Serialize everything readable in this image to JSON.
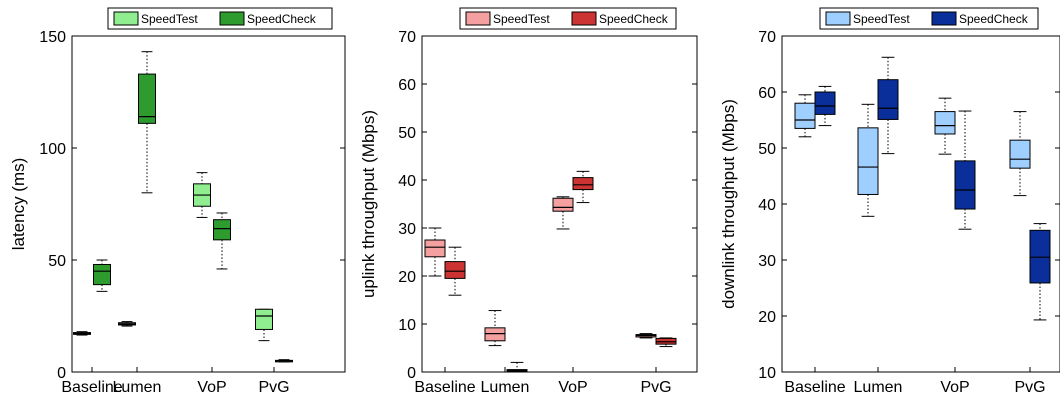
{
  "chart_data": [
    {
      "type": "box",
      "ylabel": "latency (ms)",
      "ylim": [
        0,
        150
      ],
      "yticks": [
        0,
        50,
        100,
        150
      ],
      "categories": [
        "Baseline",
        "Lumen",
        "VoP",
        "PvG"
      ],
      "legend_position": "top",
      "series": [
        {
          "name": "SpeedTest",
          "fill": "#90ee90",
          "boxes": [
            {
              "whisker_low": 16.5,
              "q1": 16.8,
              "median": 17.2,
              "q3": 17.6,
              "whisker_high": 18.0
            },
            {
              "whisker_low": 20.5,
              "q1": 21.0,
              "median": 21.5,
              "q3": 22.0,
              "whisker_high": 22.5
            },
            {
              "whisker_low": 69,
              "q1": 74,
              "median": 79,
              "q3": 84,
              "whisker_high": 89
            },
            {
              "whisker_low": 14,
              "q1": 19,
              "median": 25,
              "q3": 28,
              "whisker_high": 28
            }
          ]
        },
        {
          "name": "SpeedCheck",
          "fill": "#2e9b2e",
          "boxes": [
            {
              "whisker_low": 36,
              "q1": 39,
              "median": 45,
              "q3": 48,
              "whisker_high": 50
            },
            {
              "whisker_low": 80,
              "q1": 111,
              "median": 114,
              "q3": 133,
              "whisker_high": 143
            },
            {
              "whisker_low": 46,
              "q1": 59,
              "median": 64,
              "q3": 68,
              "whisker_high": 71
            },
            {
              "whisker_low": 4.5,
              "q1": 4.8,
              "median": 5.0,
              "q3": 5.2,
              "whisker_high": 5.5
            }
          ]
        }
      ]
    },
    {
      "type": "box",
      "ylabel": "uplink throughput (Mbps)",
      "ylim": [
        0,
        70
      ],
      "yticks": [
        0,
        10,
        20,
        30,
        40,
        50,
        60,
        70
      ],
      "categories": [
        "Baseline",
        "Lumen",
        "VoP",
        "PvG"
      ],
      "legend_position": "top",
      "series": [
        {
          "name": "SpeedTest",
          "fill": "#f4a0a0",
          "boxes": [
            {
              "whisker_low": 20,
              "q1": 24,
              "median": 26,
              "q3": 27.5,
              "whisker_high": 30
            },
            {
              "whisker_low": 5.5,
              "q1": 6.5,
              "median": 8,
              "q3": 9.2,
              "whisker_high": 12.8
            },
            {
              "whisker_low": 29.8,
              "q1": 33.5,
              "median": 34.3,
              "q3": 36.2,
              "whisker_high": 36.5
            },
            {
              "whisker_low": 7.1,
              "q1": 7.3,
              "median": 7.6,
              "q3": 7.8,
              "whisker_high": 8.0
            }
          ]
        },
        {
          "name": "SpeedCheck",
          "fill": "#cc3333",
          "boxes": [
            {
              "whisker_low": 16,
              "q1": 19.5,
              "median": 21,
              "q3": 23,
              "whisker_high": 26
            },
            {
              "whisker_low": 0,
              "q1": 0.1,
              "median": 0.3,
              "q3": 0.5,
              "whisker_high": 2.0
            },
            {
              "whisker_low": 35.3,
              "q1": 38,
              "median": 39,
              "q3": 40.5,
              "whisker_high": 41.8
            },
            {
              "whisker_low": 5.3,
              "q1": 5.8,
              "median": 6.3,
              "q3": 7.0,
              "whisker_high": 7.1
            }
          ]
        }
      ]
    },
    {
      "type": "box",
      "ylabel": "downlink throughput (Mbps)",
      "ylim": [
        10,
        70
      ],
      "yticks": [
        10,
        20,
        30,
        40,
        50,
        60,
        70
      ],
      "categories": [
        "Baseline",
        "Lumen",
        "VoP",
        "PvG"
      ],
      "legend_position": "top",
      "series": [
        {
          "name": "SpeedTest",
          "fill": "#9fcfff",
          "boxes": [
            {
              "whisker_low": 52,
              "q1": 53.5,
              "median": 55,
              "q3": 58,
              "whisker_high": 59.5
            },
            {
              "whisker_low": 37.8,
              "q1": 41.7,
              "median": 46.6,
              "q3": 53.6,
              "whisker_high": 57.8
            },
            {
              "whisker_low": 48.9,
              "q1": 52.5,
              "median": 54,
              "q3": 56.5,
              "whisker_high": 58.9
            },
            {
              "whisker_low": 41.5,
              "q1": 46.4,
              "median": 48,
              "q3": 51.4,
              "whisker_high": 56.5
            }
          ]
        },
        {
          "name": "SpeedCheck",
          "fill": "#0a2f9a",
          "boxes": [
            {
              "whisker_low": 54,
              "q1": 56,
              "median": 57.5,
              "q3": 60,
              "whisker_high": 61
            },
            {
              "whisker_low": 49,
              "q1": 55.1,
              "median": 57.1,
              "q3": 62.2,
              "whisker_high": 66.2
            },
            {
              "whisker_low": 35.5,
              "q1": 39.1,
              "median": 42.5,
              "q3": 47.7,
              "whisker_high": 56.6
            },
            {
              "whisker_low": 19.3,
              "q1": 25.9,
              "median": 30.5,
              "q3": 35.3,
              "whisker_high": 36.5
            }
          ]
        }
      ]
    }
  ]
}
